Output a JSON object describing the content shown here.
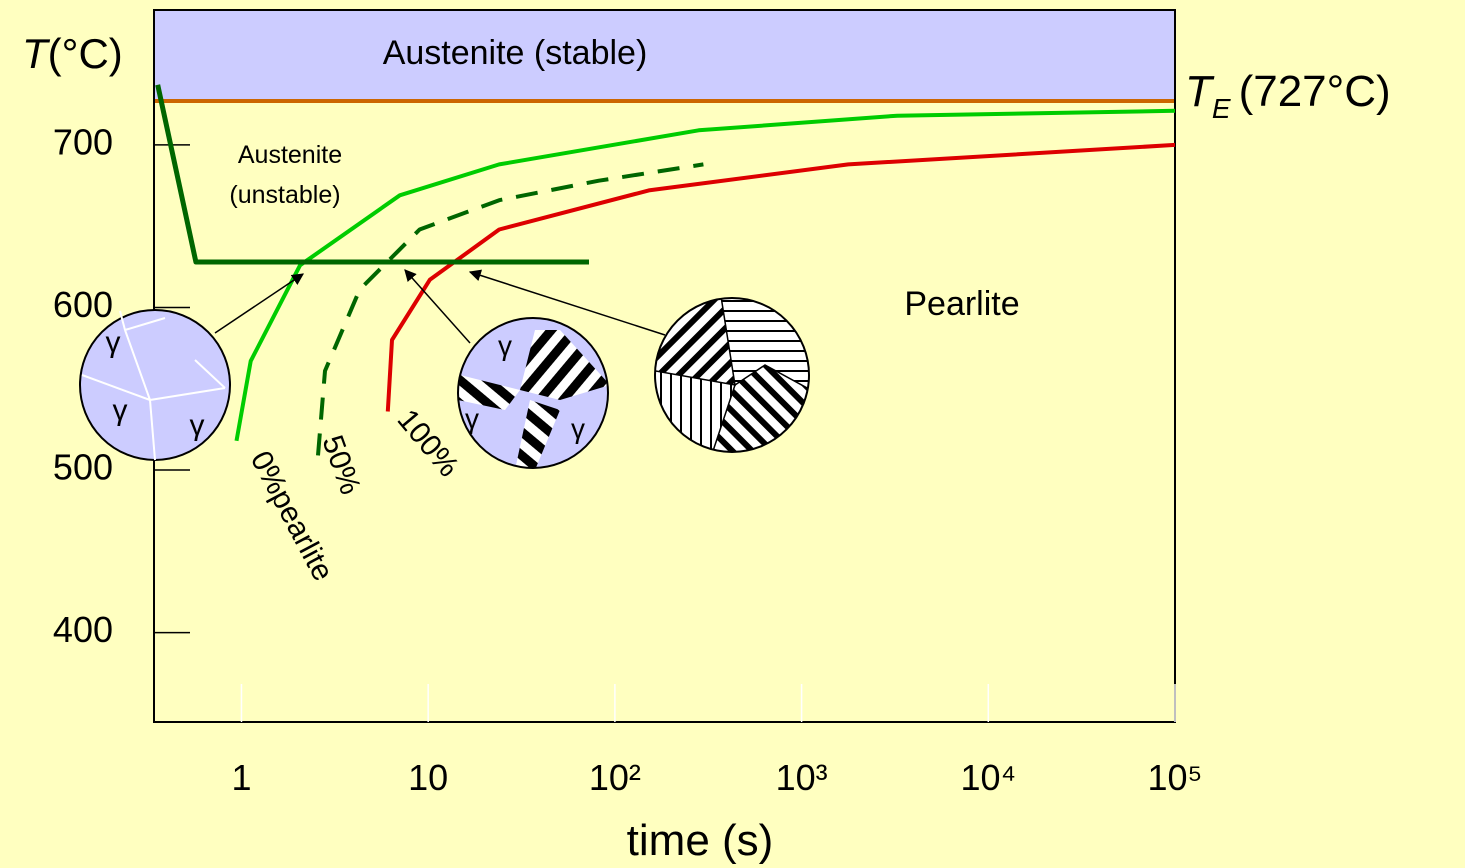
{
  "chart_data": {
    "type": "line",
    "log_x": true,
    "xlim": [
      0.34,
      100000
    ],
    "ylim": [
      345,
      783
    ],
    "xticks": [
      1,
      10,
      {
        "value": 100,
        "label": "10²"
      },
      {
        "value": 1000,
        "label": "10³"
      },
      {
        "value": 10000,
        "label": "10⁴"
      },
      {
        "value": 100000,
        "label": "10⁵"
      }
    ],
    "yticks": [
      400,
      500,
      600,
      700
    ],
    "x_label": "time (s)",
    "y_label_symbol": "T",
    "y_label_unit": "(°C)",
    "eutectoid": {
      "value": 727,
      "color": "#cc6600",
      "symbol": "T",
      "subscript": "E",
      "text": "(727°C)"
    },
    "stable_region": {
      "label": "Austenite (stable)",
      "color": "#ccccff"
    },
    "unstable_label": [
      "Austenite",
      "(unstable)"
    ],
    "pearlite_label": "Pearlite",
    "gamma": "γ",
    "series": [
      {
        "name": "0%pearlite",
        "color": "#00cc00",
        "dashed": false,
        "x": [
          0.94,
          1.12,
          2.06,
          7.05,
          24,
          281,
          3250,
          100000
        ],
        "values": [
          518,
          567,
          626,
          669,
          688,
          709,
          718,
          721
        ]
      },
      {
        "name": "50%",
        "color": "#006600",
        "dashed": true,
        "x": [
          2.57,
          2.8,
          4.3,
          9,
          24,
          82,
          298
        ],
        "values": [
          509,
          561,
          611,
          648,
          666,
          678,
          688
        ]
      },
      {
        "name": "100%",
        "color": "#dd0000",
        "dashed": false,
        "x": [
          6.08,
          6.4,
          10.2,
          24,
          152,
          1780,
          100000
        ],
        "values": [
          536,
          580,
          617,
          648,
          672,
          688,
          700
        ]
      }
    ],
    "cooling_path": {
      "color": "#006600",
      "x": [
        0.356,
        0.57,
        72.7
      ],
      "values": [
        737,
        628,
        628
      ]
    }
  }
}
